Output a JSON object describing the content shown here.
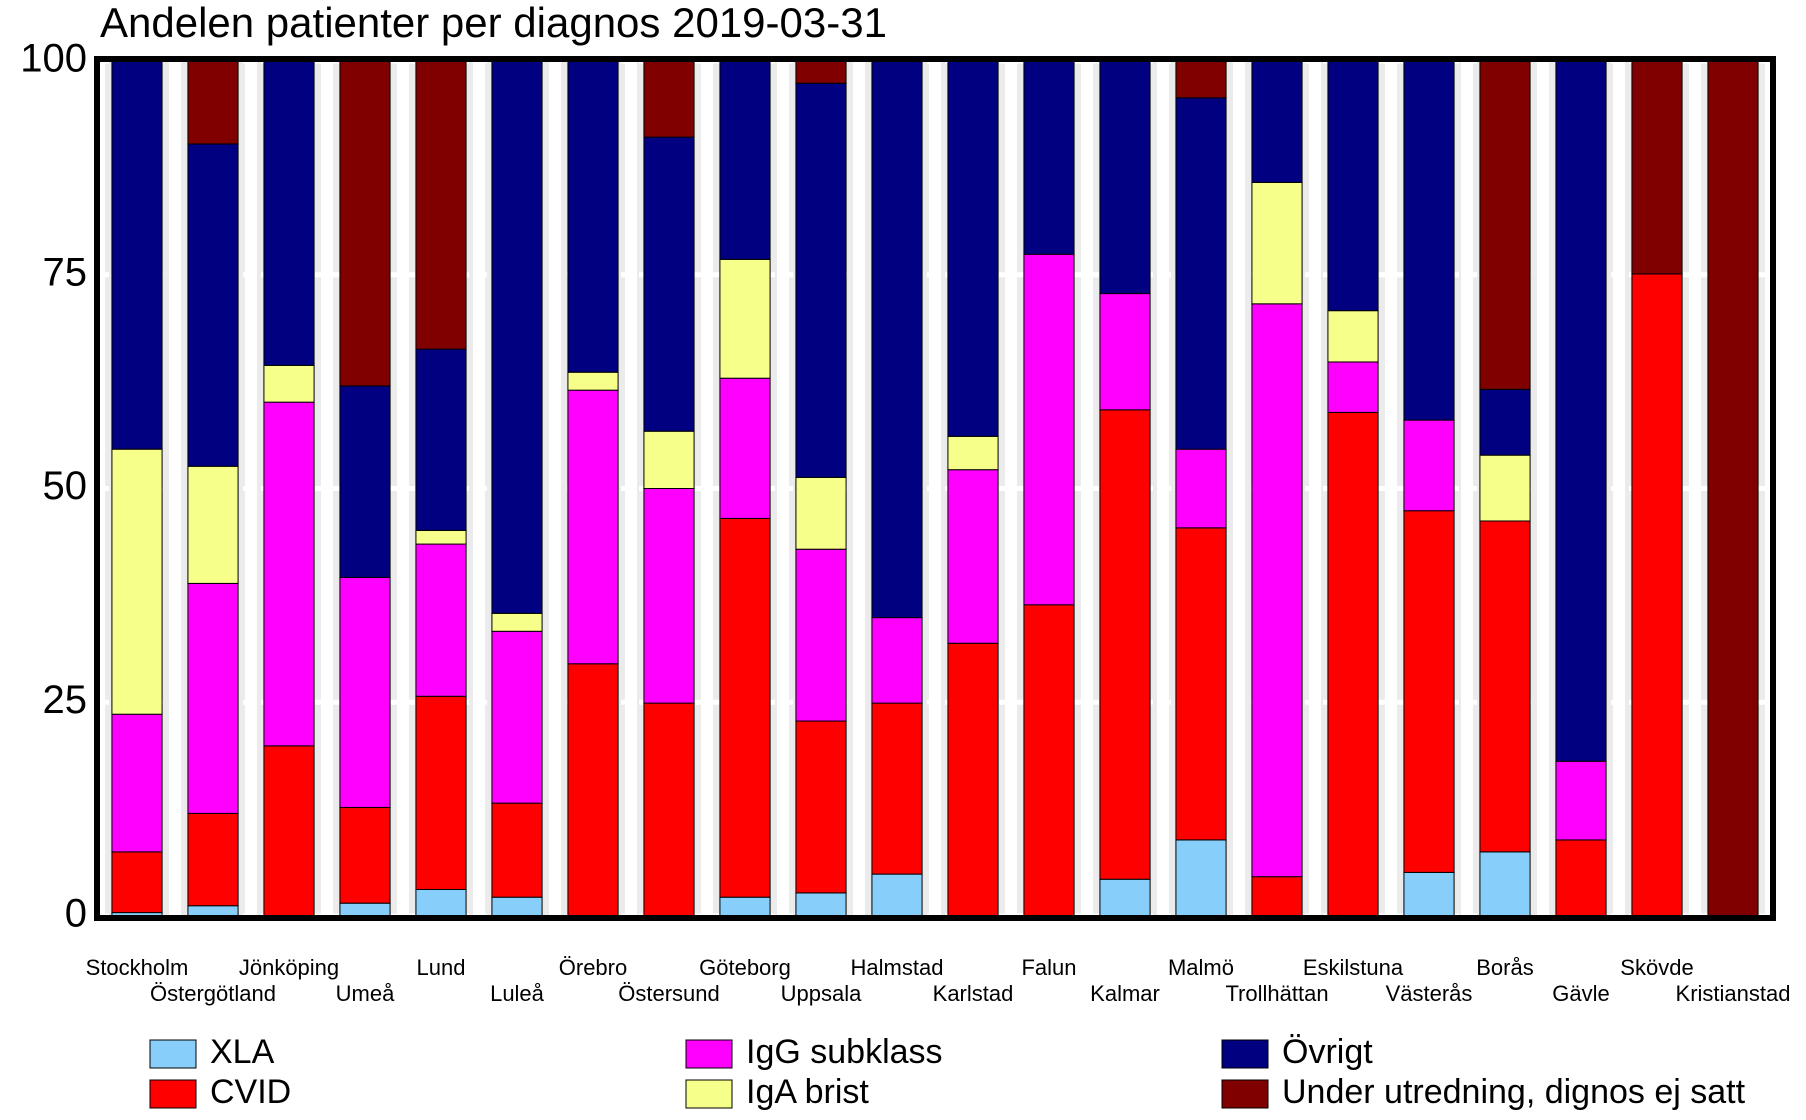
{
  "chart_data": {
    "type": "stacked_bar",
    "title": "Andelen patienter per diagnos 2019-03-31",
    "categories": [
      "Stockholm",
      "Östergötland",
      "Jönköping",
      "Umeå",
      "Lund",
      "Luleå",
      "Örebro",
      "Östersund",
      "Göteborg",
      "Uppsala",
      "Halmstad",
      "Karlstad",
      "Falun",
      "Kalmar",
      "Malmö",
      "Trollhättan",
      "Eskilstuna",
      "Västerås",
      "Borås",
      "Gävle",
      "Skövde",
      "Kristianstad"
    ],
    "series": [
      {
        "name": "XLA",
        "color": "#87cefa",
        "values": [
          0.4,
          1.2,
          0,
          1.5,
          3.1,
          2.2,
          0,
          0,
          2.2,
          2.7,
          4.9,
          0,
          0,
          4.3,
          8.9,
          0,
          0,
          5.1,
          7.5,
          0,
          0,
          0
        ]
      },
      {
        "name": "CVID",
        "color": "#ff0000",
        "values": [
          7.1,
          10.8,
          19.9,
          11.2,
          22.6,
          11.0,
          29.5,
          24.9,
          44.3,
          20.1,
          20.0,
          31.9,
          36.4,
          54.9,
          36.5,
          4.6,
          58.9,
          42.3,
          38.7,
          8.9,
          75.1,
          0
        ]
      },
      {
        "name": "IgG subklass",
        "color": "#ff00ff",
        "values": [
          16.1,
          26.9,
          40.2,
          26.9,
          17.8,
          20.1,
          32.0,
          25.1,
          16.4,
          20.1,
          10.0,
          20.3,
          41.0,
          13.6,
          9.2,
          67.0,
          5.9,
          10.6,
          0,
          9.2,
          0,
          0
        ]
      },
      {
        "name": "IgA brist",
        "color": "#f5ff8a",
        "values": [
          31.0,
          13.7,
          4.3,
          0,
          1.6,
          2.1,
          2.1,
          6.7,
          13.9,
          8.4,
          0,
          3.9,
          0,
          0,
          0,
          14.2,
          6.0,
          0,
          7.7,
          0,
          0,
          0
        ]
      },
      {
        "name": "Övrigt",
        "color": "#000080",
        "values": [
          45.4,
          37.7,
          35.6,
          22.4,
          21.2,
          64.6,
          36.4,
          34.4,
          23.2,
          46.1,
          65.1,
          43.9,
          22.6,
          27.2,
          41.1,
          14.2,
          29.2,
          42.0,
          7.7,
          81.9,
          0,
          0
        ]
      },
      {
        "name": "Under utredning, dignos ej satt",
        "color": "#800000",
        "values": [
          0,
          9.7,
          0,
          38.0,
          33.7,
          0,
          0,
          8.9,
          0,
          2.6,
          0,
          0,
          0,
          0,
          4.3,
          0,
          0,
          0,
          38.4,
          0,
          24.9,
          100
        ]
      }
    ],
    "ylim": [
      0,
      100
    ],
    "yticks": [
      0,
      25,
      50,
      75,
      100
    ],
    "grid": true
  }
}
